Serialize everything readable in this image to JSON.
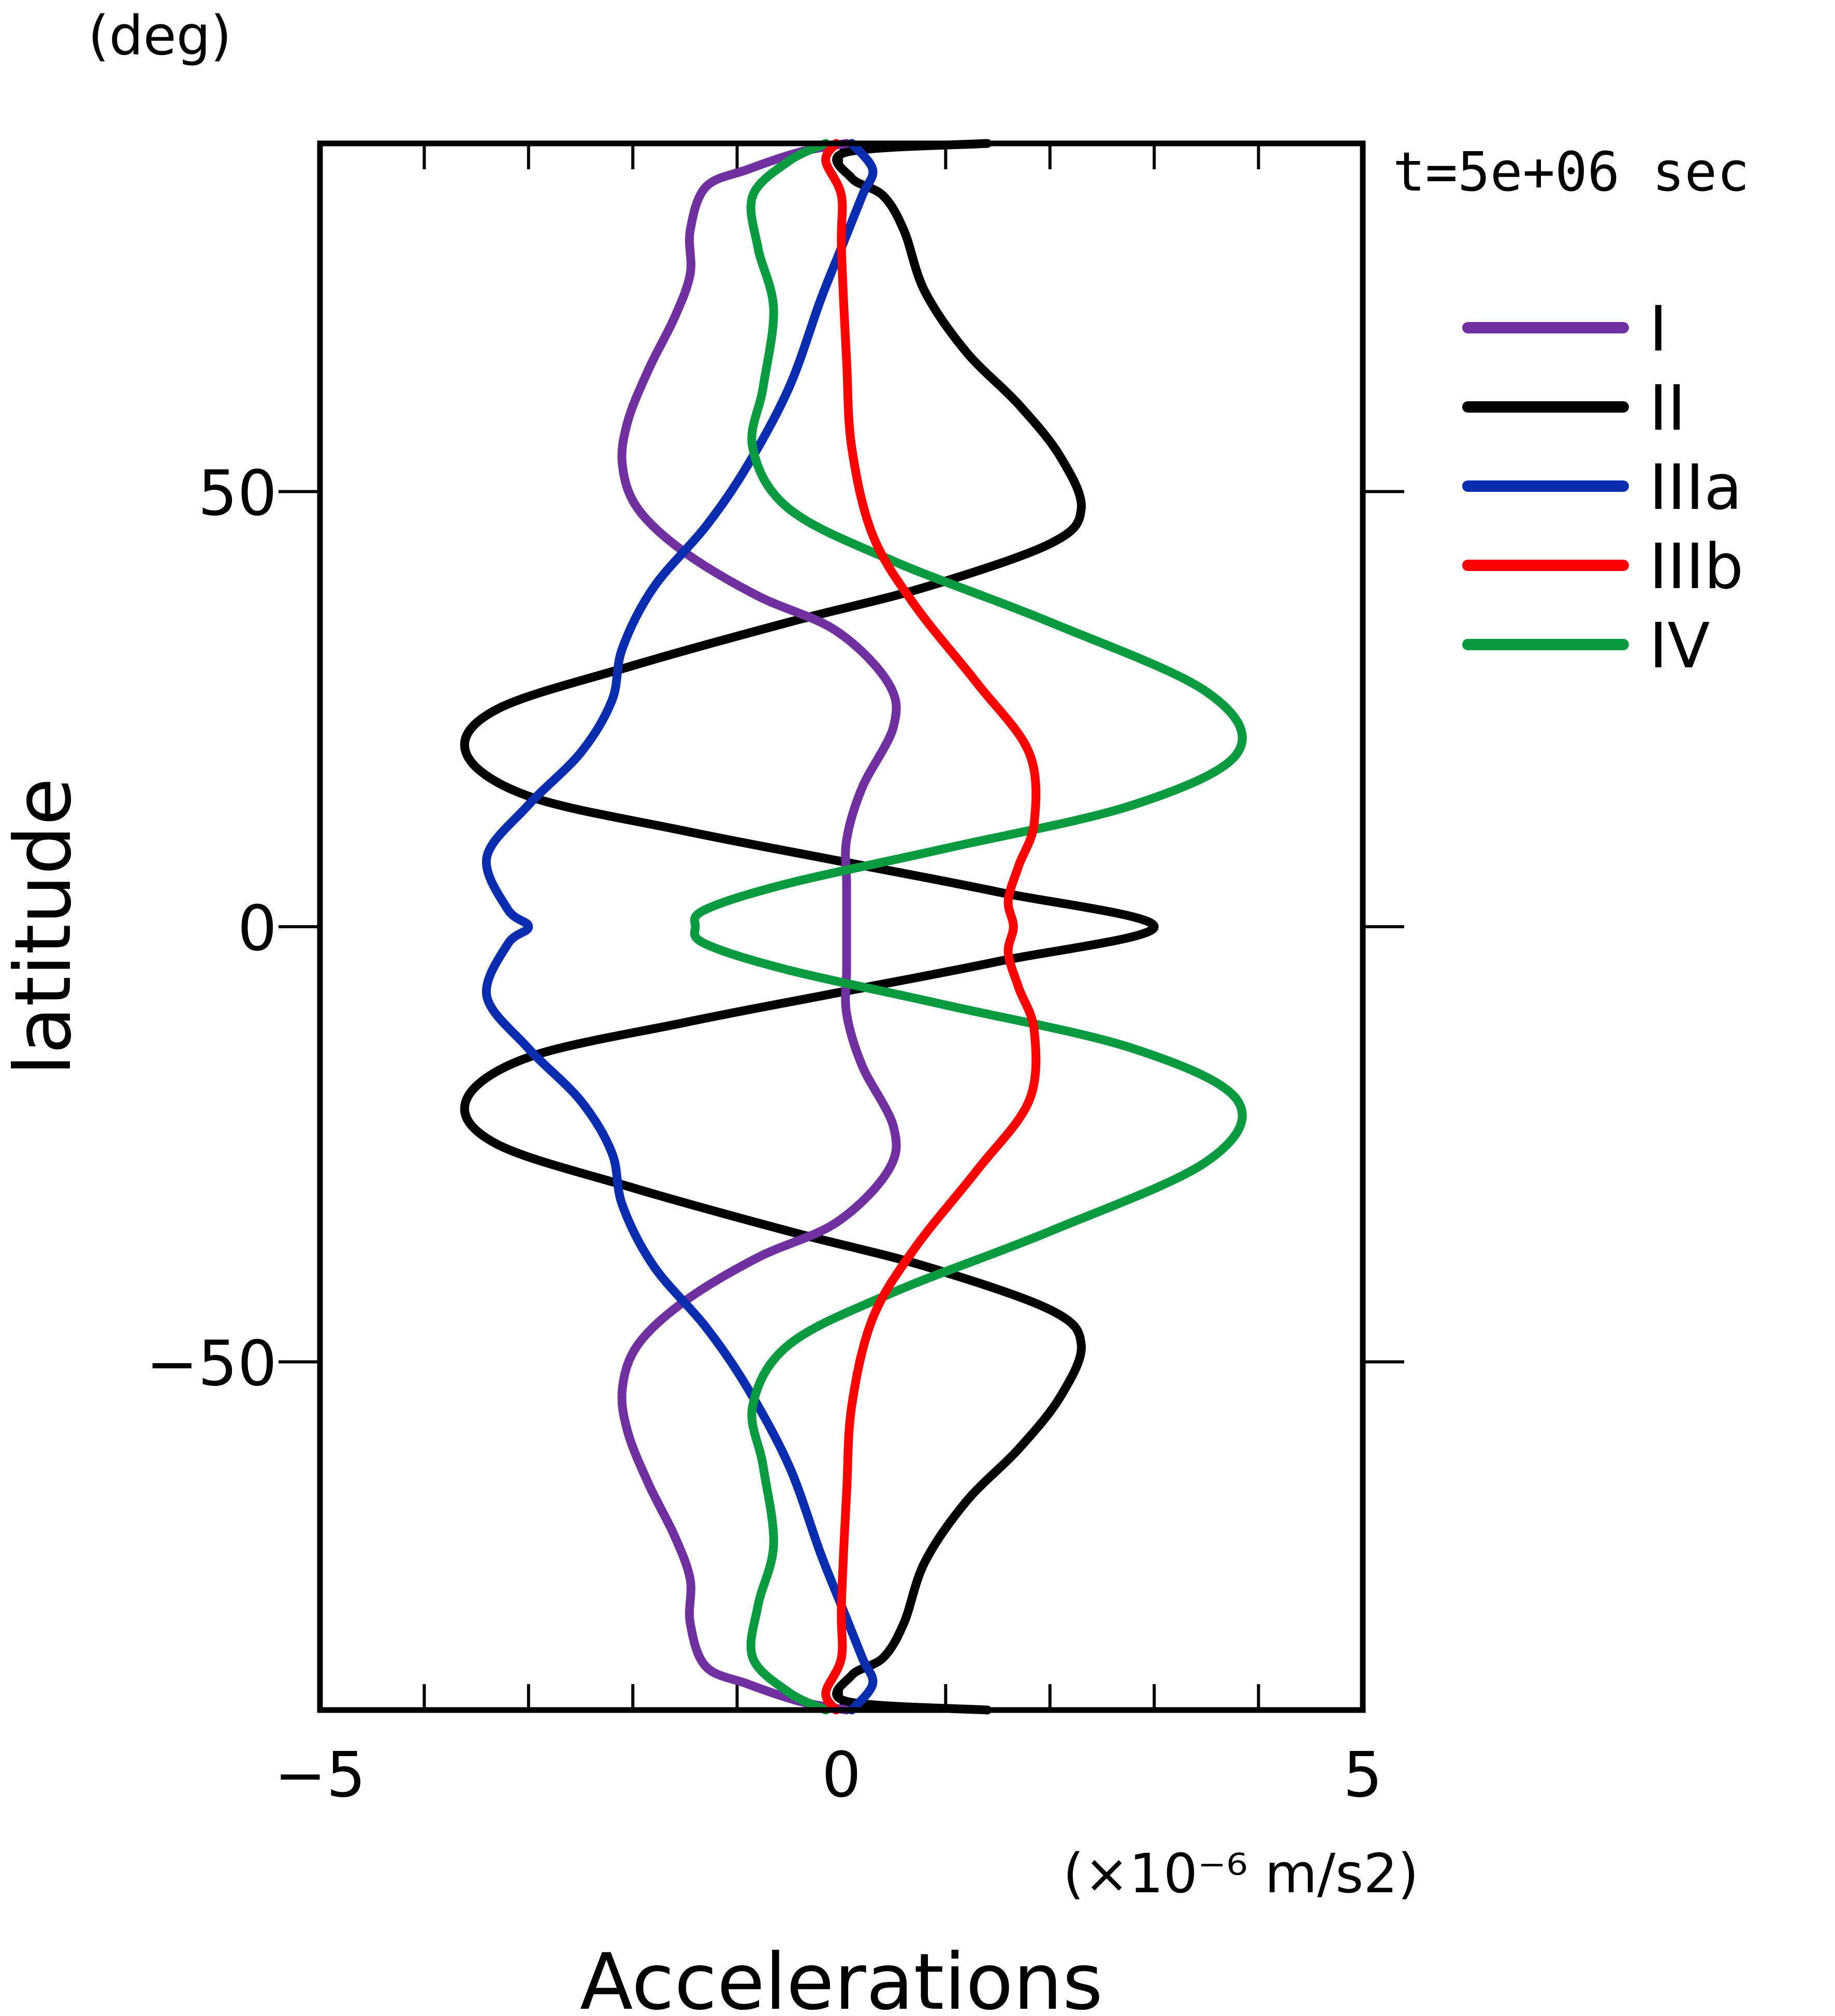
{
  "chart_data": {
    "type": "line",
    "time_label": "t=5e+06 sec",
    "xlabel": "Accelerations",
    "xunit": "(×10⁻⁶ m/s2)",
    "ylabel": "latitude",
    "yunit": "(deg)",
    "xlim": [
      -5,
      5
    ],
    "ylim": [
      -90,
      90
    ],
    "xticks": [
      -5,
      -4,
      -3,
      -2,
      -1,
      0,
      1,
      2,
      3,
      4,
      5
    ],
    "xtick_labels": [
      {
        "value": -5,
        "label": "−5"
      },
      {
        "value": 0,
        "label": "0"
      },
      {
        "value": 5,
        "label": "5"
      }
    ],
    "yticks": [
      -50,
      0,
      50
    ],
    "ytick_labels": [
      {
        "value": 50,
        "label": "50"
      },
      {
        "value": 0,
        "label": "0"
      },
      {
        "value": -50,
        "label": "−50"
      }
    ],
    "legend_position": "right",
    "series": [
      {
        "name": "I",
        "color": "#7030a0",
        "points": [
          [
            0.05,
            -90
          ],
          [
            -0.4,
            -89
          ],
          [
            -0.9,
            -87
          ],
          [
            -1.3,
            -85
          ],
          [
            -1.45,
            -80
          ],
          [
            -1.45,
            -75
          ],
          [
            -1.6,
            -70
          ],
          [
            -1.85,
            -64
          ],
          [
            -2.05,
            -58
          ],
          [
            -2.1,
            -53
          ],
          [
            -1.95,
            -48
          ],
          [
            -1.5,
            -43
          ],
          [
            -0.8,
            -38
          ],
          [
            -0.05,
            -34
          ],
          [
            0.45,
            -28
          ],
          [
            0.5,
            -23
          ],
          [
            0.2,
            -16
          ],
          [
            0.05,
            -10
          ],
          [
            0.05,
            -5
          ],
          [
            0.05,
            0
          ],
          [
            0.05,
            5
          ],
          [
            0.05,
            10
          ],
          [
            0.2,
            16
          ],
          [
            0.5,
            23
          ],
          [
            0.45,
            28
          ],
          [
            -0.05,
            34
          ],
          [
            -0.8,
            38
          ],
          [
            -1.5,
            43
          ],
          [
            -1.95,
            48
          ],
          [
            -2.1,
            53
          ],
          [
            -2.05,
            58
          ],
          [
            -1.85,
            64
          ],
          [
            -1.6,
            70
          ],
          [
            -1.45,
            75
          ],
          [
            -1.45,
            80
          ],
          [
            -1.3,
            85
          ],
          [
            -0.9,
            87
          ],
          [
            -0.4,
            89
          ],
          [
            0.05,
            90
          ]
        ]
      },
      {
        "name": "II",
        "color": "#000000",
        "points": [
          [
            1.4,
            -90
          ],
          [
            0.05,
            -89
          ],
          [
            0.1,
            -86
          ],
          [
            0.4,
            -84
          ],
          [
            0.6,
            -80
          ],
          [
            0.8,
            -73
          ],
          [
            1.2,
            -66
          ],
          [
            1.7,
            -60
          ],
          [
            2.1,
            -54
          ],
          [
            2.3,
            -48
          ],
          [
            2.0,
            -44
          ],
          [
            0.8,
            -39
          ],
          [
            -0.5,
            -35
          ],
          [
            -2.0,
            -30
          ],
          [
            -3.3,
            -25
          ],
          [
            -3.6,
            -20
          ],
          [
            -3.0,
            -15
          ],
          [
            -1.5,
            -11
          ],
          [
            0.0,
            -7.5
          ],
          [
            1.5,
            -4
          ],
          [
            3.0,
            0
          ],
          [
            1.5,
            4
          ],
          [
            0.0,
            7.5
          ],
          [
            -1.5,
            11
          ],
          [
            -3.0,
            15
          ],
          [
            -3.6,
            20
          ],
          [
            -3.3,
            25
          ],
          [
            -2.0,
            30
          ],
          [
            -0.5,
            35
          ],
          [
            0.8,
            39
          ],
          [
            2.0,
            44
          ],
          [
            2.3,
            48
          ],
          [
            2.1,
            54
          ],
          [
            1.7,
            60
          ],
          [
            1.2,
            66
          ],
          [
            0.8,
            73
          ],
          [
            0.6,
            80
          ],
          [
            0.4,
            84
          ],
          [
            0.1,
            86
          ],
          [
            0.05,
            89
          ],
          [
            1.4,
            90
          ]
        ]
      },
      {
        "name": "IIIa",
        "color": "#0a2db0",
        "points": [
          [
            0.1,
            -90
          ],
          [
            0.3,
            -87
          ],
          [
            0.2,
            -84
          ],
          [
            0.0,
            -78
          ],
          [
            -0.2,
            -72
          ],
          [
            -0.5,
            -62
          ],
          [
            -0.9,
            -53
          ],
          [
            -1.3,
            -46
          ],
          [
            -1.8,
            -39
          ],
          [
            -2.1,
            -32
          ],
          [
            -2.2,
            -26
          ],
          [
            -2.5,
            -20
          ],
          [
            -3.0,
            -14
          ],
          [
            -3.4,
            -8
          ],
          [
            -3.2,
            -2
          ],
          [
            -3.0,
            0
          ],
          [
            -3.2,
            2
          ],
          [
            -3.4,
            8
          ],
          [
            -3.0,
            14
          ],
          [
            -2.5,
            20
          ],
          [
            -2.2,
            26
          ],
          [
            -2.1,
            32
          ],
          [
            -1.8,
            39
          ],
          [
            -1.3,
            46
          ],
          [
            -0.9,
            53
          ],
          [
            -0.5,
            62
          ],
          [
            -0.2,
            72
          ],
          [
            0.0,
            78
          ],
          [
            0.2,
            84
          ],
          [
            0.3,
            87
          ],
          [
            0.1,
            90
          ]
        ]
      },
      {
        "name": "IIIb",
        "color": "#ff0000",
        "points": [
          [
            -0.05,
            -90
          ],
          [
            -0.15,
            -88
          ],
          [
            0.0,
            -84
          ],
          [
            0.0,
            -78
          ],
          [
            0.05,
            -65
          ],
          [
            0.1,
            -55
          ],
          [
            0.3,
            -45
          ],
          [
            0.7,
            -37
          ],
          [
            1.3,
            -28
          ],
          [
            1.8,
            -20
          ],
          [
            1.85,
            -12
          ],
          [
            1.7,
            -7
          ],
          [
            1.6,
            -3
          ],
          [
            1.65,
            0
          ],
          [
            1.6,
            3
          ],
          [
            1.7,
            7
          ],
          [
            1.85,
            12
          ],
          [
            1.8,
            20
          ],
          [
            1.3,
            28
          ],
          [
            0.7,
            37
          ],
          [
            0.3,
            45
          ],
          [
            0.1,
            55
          ],
          [
            0.05,
            65
          ],
          [
            0.0,
            78
          ],
          [
            0.0,
            84
          ],
          [
            -0.15,
            88
          ],
          [
            -0.05,
            90
          ]
        ]
      },
      {
        "name": "IV",
        "color": "#0a9a40",
        "points": [
          [
            -0.15,
            -90
          ],
          [
            -0.5,
            -88
          ],
          [
            -0.85,
            -84
          ],
          [
            -0.8,
            -78
          ],
          [
            -0.65,
            -71
          ],
          [
            -0.75,
            -62
          ],
          [
            -0.85,
            -55
          ],
          [
            -0.5,
            -48
          ],
          [
            0.5,
            -42
          ],
          [
            2.0,
            -35
          ],
          [
            3.5,
            -27
          ],
          [
            3.8,
            -20
          ],
          [
            2.8,
            -14
          ],
          [
            1.0,
            -9
          ],
          [
            -0.5,
            -5
          ],
          [
            -1.3,
            -2
          ],
          [
            -1.4,
            0
          ],
          [
            -1.3,
            2
          ],
          [
            -0.5,
            5
          ],
          [
            1.0,
            9
          ],
          [
            2.8,
            14
          ],
          [
            3.8,
            20
          ],
          [
            3.5,
            27
          ],
          [
            2.0,
            35
          ],
          [
            0.5,
            42
          ],
          [
            -0.5,
            48
          ],
          [
            -0.85,
            55
          ],
          [
            -0.75,
            62
          ],
          [
            -0.65,
            71
          ],
          [
            -0.8,
            78
          ],
          [
            -0.85,
            84
          ],
          [
            -0.5,
            88
          ],
          [
            -0.15,
            90
          ]
        ]
      }
    ]
  }
}
